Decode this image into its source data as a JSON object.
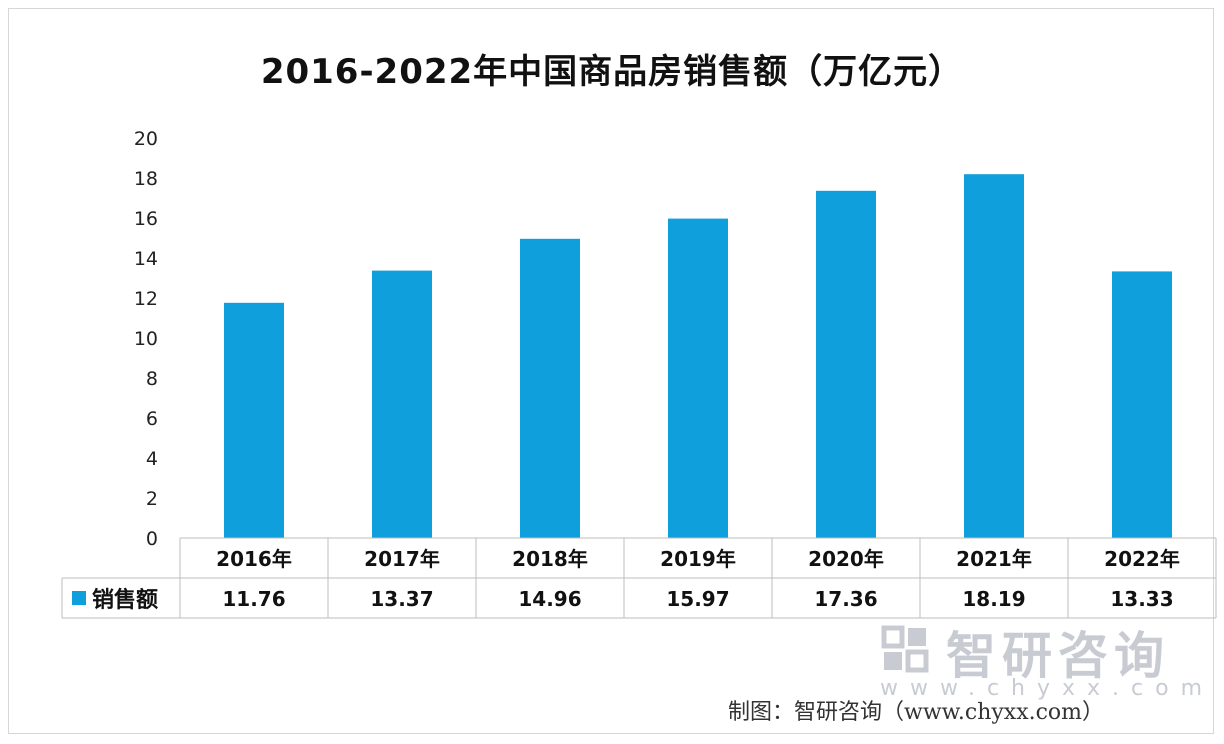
{
  "chart_data": {
    "type": "bar",
    "title": "2016-2022年中国商品房销售额（万亿元）",
    "categories": [
      "2016年",
      "2017年",
      "2018年",
      "2019年",
      "2020年",
      "2021年",
      "2022年"
    ],
    "series": [
      {
        "name": "销售额",
        "values": [
          11.76,
          13.37,
          14.96,
          15.97,
          17.36,
          18.19,
          13.33
        ]
      }
    ],
    "value_labels": [
      "11.76",
      "13.37",
      "14.96",
      "15.97",
      "17.36",
      "18.19",
      "13.33"
    ],
    "ylim": [
      0,
      20
    ],
    "yticks": [
      0,
      2,
      4,
      6,
      8,
      10,
      12,
      14,
      16,
      18,
      20
    ],
    "xlabel": "",
    "ylabel": "",
    "grid": false,
    "legend_position": "data-table-left",
    "bar_color": "#0f9fdc"
  },
  "watermark": {
    "brand": "智研咨询",
    "url": "www.chyxx.com"
  },
  "source": "制图：智研咨询（www.chyxx.com）",
  "colors": {
    "bar": "#0f9fdc",
    "table_border": "#bdbdbd",
    "watermark": "#c8ccd2"
  }
}
